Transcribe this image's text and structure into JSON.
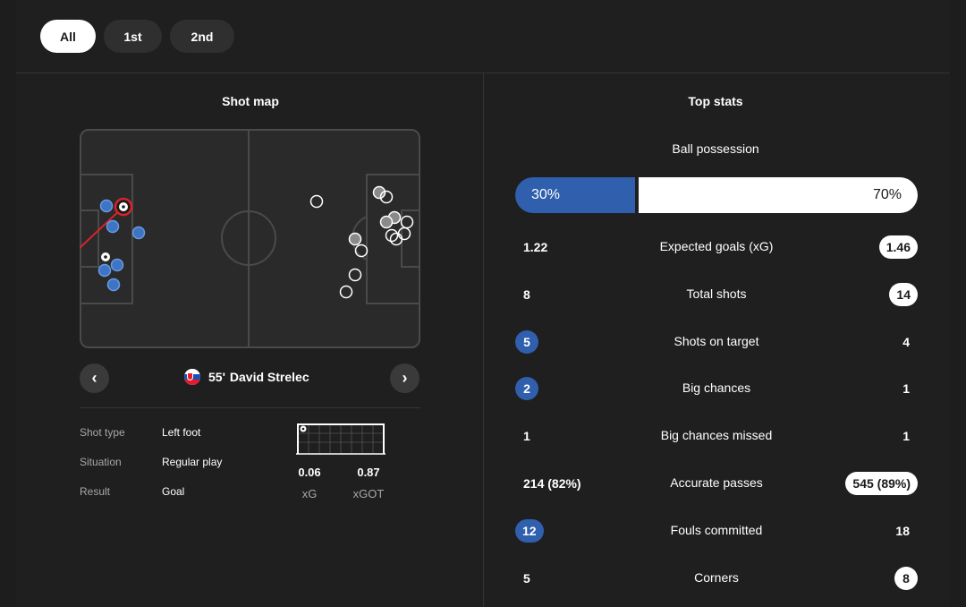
{
  "tabs": [
    {
      "label": "All",
      "active": true
    },
    {
      "label": "1st",
      "active": false
    },
    {
      "label": "2nd",
      "active": false
    }
  ],
  "shot_map": {
    "title": "Shot map",
    "selected_shot": {
      "minute": "55'",
      "player": "David Strelec",
      "details": [
        {
          "label": "Shot type",
          "value": "Left foot"
        },
        {
          "label": "Situation",
          "value": "Regular play"
        },
        {
          "label": "Result",
          "value": "Goal"
        }
      ],
      "xg": "0.06",
      "xg_label": "xG",
      "xgot": "0.87",
      "xgot_label": "xGOT"
    },
    "colors": {
      "home": "#4a86d6",
      "away": "#ffffff",
      "selected": "#d8232a"
    }
  },
  "top_stats": {
    "title": "Top stats",
    "possession": {
      "label": "Ball possession",
      "home": "30%",
      "away": "70%",
      "home_fraction": 0.3
    },
    "rows": [
      {
        "label": "Expected goals (xG)",
        "home": "1.22",
        "away": "1.46",
        "highlight": "away"
      },
      {
        "label": "Total shots",
        "home": "8",
        "away": "14",
        "highlight": "away"
      },
      {
        "label": "Shots on target",
        "home": "5",
        "away": "4",
        "highlight": "home"
      },
      {
        "label": "Big chances",
        "home": "2",
        "away": "1",
        "highlight": "home"
      },
      {
        "label": "Big chances missed",
        "home": "1",
        "away": "1",
        "highlight": "none"
      },
      {
        "label": "Accurate passes",
        "home": "214 (82%)",
        "away": "545 (89%)",
        "highlight": "away"
      },
      {
        "label": "Fouls committed",
        "home": "12",
        "away": "18",
        "highlight": "home"
      },
      {
        "label": "Corners",
        "home": "5",
        "away": "8",
        "highlight": "away"
      }
    ],
    "colors": {
      "home": "#2f5fad",
      "away": "#ffffff"
    }
  }
}
